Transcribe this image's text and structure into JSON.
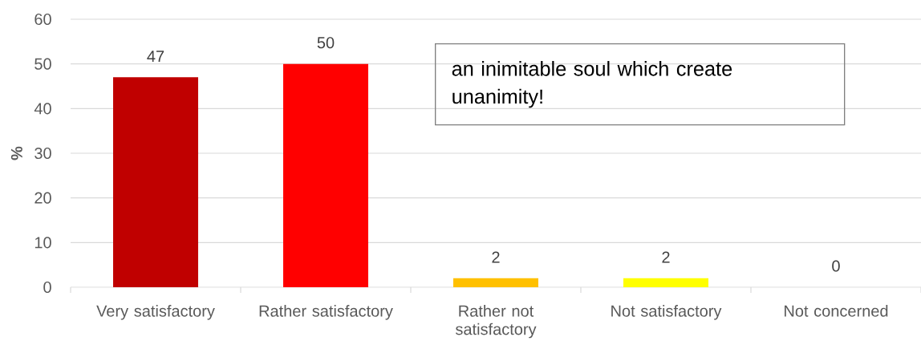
{
  "chart_data": {
    "type": "bar",
    "ylabel": "%",
    "categories": [
      "Very satisfactory",
      "Rather satisfactory",
      "Rather not satisfactory",
      "Not satisfactory",
      "Not concerned"
    ],
    "values": [
      47,
      50,
      2,
      2,
      0
    ],
    "colors": [
      "#c00000",
      "#ff0000",
      "#ffc000",
      "#ffff00",
      "#00b050"
    ],
    "ylim": [
      0,
      60
    ],
    "yticks": [
      0,
      10,
      20,
      30,
      40,
      50,
      60
    ],
    "grid": "y",
    "data_labels": true,
    "annotations": [
      "an inimitable soul which create unanimity!"
    ]
  }
}
